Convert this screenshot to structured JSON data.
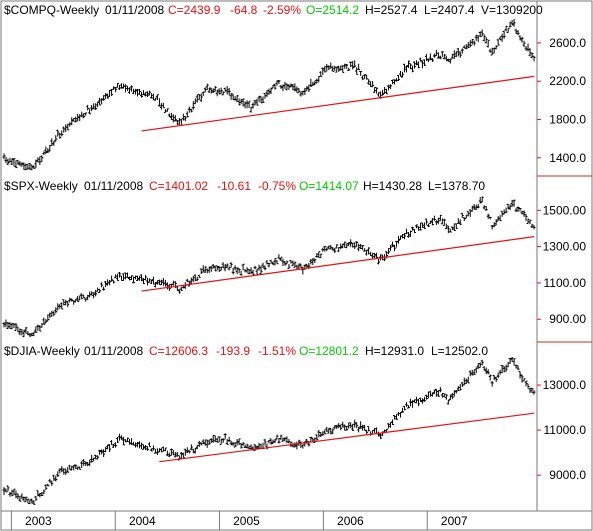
{
  "chart_data": [
    {
      "type": "ohlc",
      "symbol": "$COMPQ-Weekly",
      "date": "01/11/2008",
      "close_label": "C=2439.9",
      "change": "-64.8",
      "change_pct": "-2.59%",
      "open_label": "O=2514.2",
      "high_label": "H=2527.4",
      "low_label": "L=2407.4",
      "volume_label": "V=1309200",
      "ylim": [
        1220,
        2860
      ],
      "yticks": [
        1400,
        1800,
        2200,
        2600
      ],
      "ytick_labels": [
        "1400.0",
        "1800.0",
        "2200.0",
        "2600.0"
      ],
      "series": [
        {
          "x": [
            "2002-12-06",
            "2003-03-14",
            "2003-06-20",
            "2003-09-26",
            "2004-01-16",
            "2004-05-14",
            "2004-08-13",
            "2004-11-19",
            "2005-01-21",
            "2005-04-22",
            "2005-07-29",
            "2005-10-21",
            "2006-01-13",
            "2006-04-21",
            "2006-07-21",
            "2006-10-20",
            "2007-02-16",
            "2007-03-16",
            "2007-07-13",
            "2007-08-17",
            "2007-10-26",
            "2007-11-30",
            "2008-01-11"
          ],
          "values": [
            1390,
            1280,
            1650,
            1900,
            2150,
            2050,
            1760,
            2130,
            2090,
            1920,
            2180,
            2080,
            2320,
            2360,
            2050,
            2340,
            2480,
            2400,
            2700,
            2500,
            2810,
            2650,
            2440
          ]
        }
      ],
      "trendline": {
        "x": [
          "2004-04-02",
          "2008-01-11"
        ],
        "values": [
          1680,
          2250
        ]
      },
      "trendline_color": "#e81010"
    },
    {
      "type": "ohlc",
      "symbol": "$SPX-Weekly",
      "date": "01/11/2008",
      "close_label": "C=1401.02",
      "change": "-10.61",
      "change_pct": "-0.75%",
      "open_label": "O=1414.07",
      "high_label": "H=1430.28",
      "low_label": "L=1378.70",
      "ylim": [
        780,
        1590
      ],
      "yticks": [
        900,
        1100,
        1300,
        1500
      ],
      "ytick_labels": [
        "900.00",
        "1100.00",
        "1300.00",
        "1500.00"
      ],
      "series": [
        {
          "x": [
            "2002-12-06",
            "2003-03-14",
            "2003-06-20",
            "2003-09-26",
            "2004-01-16",
            "2004-05-14",
            "2004-08-13",
            "2004-11-19",
            "2005-01-21",
            "2005-04-22",
            "2005-07-29",
            "2005-10-21",
            "2006-01-13",
            "2006-04-21",
            "2006-07-21",
            "2006-10-20",
            "2007-02-16",
            "2007-03-16",
            "2007-07-13",
            "2007-08-17",
            "2007-10-26",
            "2007-11-30",
            "2008-01-11"
          ],
          "values": [
            880,
            810,
            980,
            1020,
            1140,
            1110,
            1070,
            1180,
            1190,
            1160,
            1230,
            1180,
            1290,
            1310,
            1230,
            1370,
            1460,
            1390,
            1550,
            1420,
            1540,
            1480,
            1400
          ]
        }
      ],
      "trendline": {
        "x": [
          "2004-04-02",
          "2008-01-11"
        ],
        "values": [
          1055,
          1355
        ]
      },
      "trendline_color": "#e81010"
    },
    {
      "type": "ohlc",
      "symbol": "$DJIA-Weekly",
      "date": "01/11/2008",
      "close_label": "C=12606.3",
      "change": "-193.9",
      "change_pct": "-1.51%",
      "open_label": "O=12801.2",
      "high_label": "H=12931.0",
      "low_label": "L=12502.0",
      "ylim": [
        7500,
        14200
      ],
      "yticks": [
        9000,
        11000,
        13000
      ],
      "ytick_labels": [
        "9000.0",
        "11000.0",
        "13000.0"
      ],
      "series": [
        {
          "x": [
            "2002-12-06",
            "2003-03-14",
            "2003-06-20",
            "2003-09-26",
            "2004-01-16",
            "2004-05-14",
            "2004-08-13",
            "2004-11-19",
            "2005-01-21",
            "2005-04-22",
            "2005-07-29",
            "2005-10-21",
            "2006-01-13",
            "2006-04-21",
            "2006-07-21",
            "2006-10-20",
            "2007-02-16",
            "2007-03-16",
            "2007-07-13",
            "2007-08-17",
            "2007-10-26",
            "2007-11-30",
            "2008-01-11"
          ],
          "values": [
            8400,
            7800,
            9100,
            9500,
            10600,
            10200,
            9900,
            10500,
            10600,
            10200,
            10600,
            10300,
            11000,
            11200,
            10800,
            12100,
            12700,
            12300,
            14000,
            13200,
            14100,
            13400,
            12600
          ]
        }
      ],
      "trendline": {
        "x": [
          "2004-06-04",
          "2008-01-11"
        ],
        "values": [
          9600,
          11750
        ]
      },
      "trendline_color": "#e81010"
    }
  ],
  "x_axis": {
    "labels": [
      "2003",
      "2004",
      "2005",
      "2006",
      "2007"
    ],
    "dates": [
      "2003-01-01",
      "2004-01-01",
      "2005-01-01",
      "2006-01-01",
      "2007-01-01"
    ],
    "xlim": [
      "2002-11-29",
      "2008-01-18"
    ]
  },
  "colors": {
    "red": "#e81010",
    "green": "#00cc00",
    "black": "#000000",
    "frame": "#7a7a7a",
    "separator": "#d52b1e"
  }
}
